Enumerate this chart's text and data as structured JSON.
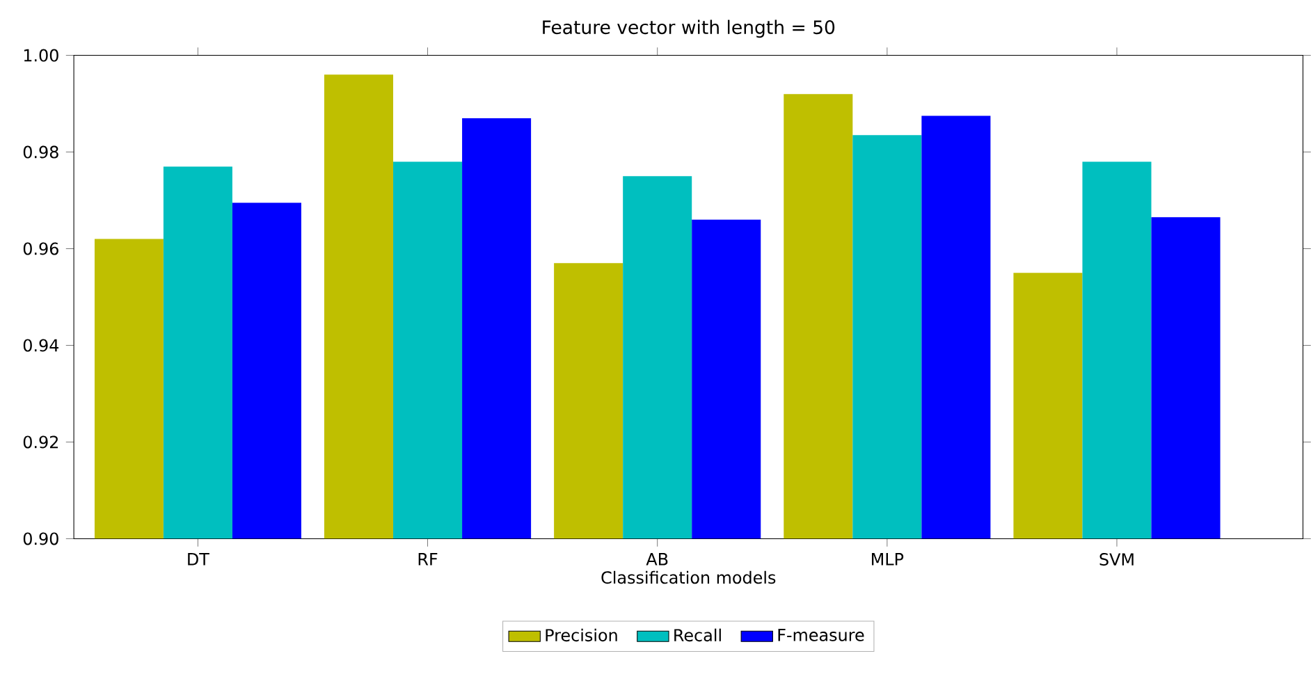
{
  "chart_data": {
    "type": "bar",
    "title": "Feature vector with length = 50",
    "xlabel": "Classification models",
    "categories": [
      "DT",
      "RF",
      "AB",
      "MLP",
      "SVM"
    ],
    "series": [
      {
        "name": "Precision",
        "color": "#bfbf00",
        "values": [
          0.962,
          0.996,
          0.957,
          0.992,
          0.955
        ]
      },
      {
        "name": "Recall",
        "color": "#00bfbf",
        "values": [
          0.977,
          0.978,
          0.975,
          0.9835,
          0.978
        ]
      },
      {
        "name": "F-measure",
        "color": "#0000ff",
        "values": [
          0.9695,
          0.987,
          0.966,
          0.9875,
          0.9665
        ]
      }
    ],
    "ylim": [
      0.9,
      1.0
    ],
    "yticks": [
      {
        "value": 0.9,
        "label": "0.90"
      },
      {
        "value": 0.92,
        "label": "0.92"
      },
      {
        "value": 0.94,
        "label": "0.94"
      },
      {
        "value": 0.96,
        "label": "0.96"
      },
      {
        "value": 0.98,
        "label": "0.98"
      },
      {
        "value": 1.0,
        "label": "1.00"
      }
    ],
    "legend": "bottom",
    "grid": false
  }
}
